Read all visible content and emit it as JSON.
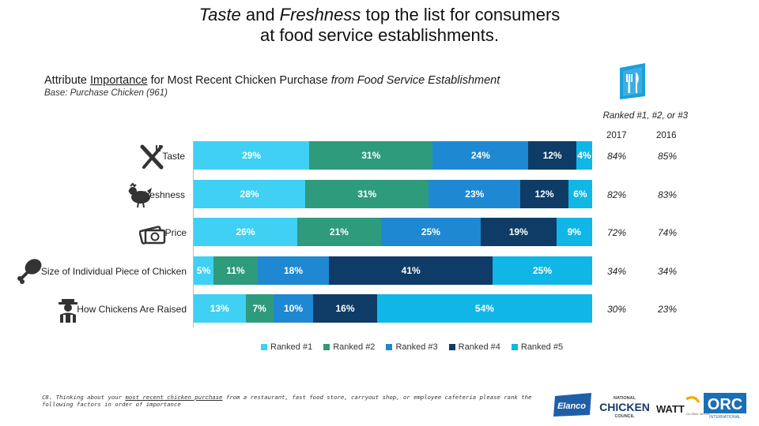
{
  "title": {
    "line1_part1": "Taste",
    "line1_part2": " and ",
    "line1_part3": "Freshness",
    "line1_part4": " top the list for consumers",
    "line2": "at food service establishments."
  },
  "subtitle": {
    "part1": "Attribute ",
    "part2": "Importance",
    "part3": " for Most Recent Chicken Purchase ",
    "part4": "from Food Service Establishment"
  },
  "base_text": "Base: Purchase Chicken (961)",
  "comparison": {
    "header": "Ranked #1, #2, or #3",
    "year_a": "2017",
    "year_b": "2016",
    "rows": [
      {
        "a": "84%",
        "b": "85%"
      },
      {
        "a": "82%",
        "b": "83%"
      },
      {
        "a": "72%",
        "b": "74%"
      },
      {
        "a": "34%",
        "b": "34%"
      },
      {
        "a": "30%",
        "b": "23%"
      }
    ]
  },
  "chart_data": {
    "type": "bar",
    "orientation": "horizontal",
    "stacked": true,
    "categories": [
      "Taste",
      "Freshness",
      "Price",
      "Size of Individual Piece of Chicken",
      "How Chickens Are Raised"
    ],
    "series": [
      {
        "name": "Ranked #1",
        "color": "#3FD0F4",
        "values": [
          29,
          28,
          26,
          5,
          13
        ],
        "labels": [
          "29%",
          "28%",
          "26%",
          "5%",
          "13%"
        ]
      },
      {
        "name": "Ranked #2",
        "color": "#2E9B7C",
        "values": [
          31,
          31,
          21,
          11,
          7
        ],
        "labels": [
          "31%",
          "31%",
          "21%",
          "11%",
          "7%"
        ]
      },
      {
        "name": "Ranked #3",
        "color": "#1E88D2",
        "values": [
          24,
          23,
          25,
          18,
          10
        ],
        "labels": [
          "24%",
          "23%",
          "25%",
          "18%",
          "10%"
        ]
      },
      {
        "name": "Ranked #4",
        "color": "#0E3C66",
        "values": [
          12,
          12,
          19,
          41,
          16
        ],
        "labels": [
          "12%",
          "12%",
          "19%",
          "41%",
          "16%"
        ]
      },
      {
        "name": "Ranked #5",
        "color": "#10B7E6",
        "values": [
          4,
          6,
          9,
          25,
          54
        ],
        "labels": [
          "4%",
          "6%",
          "9%",
          "25%",
          "54%"
        ]
      }
    ],
    "xlim": [
      0,
      100
    ],
    "legend_position": "bottom"
  },
  "footnote": {
    "part1": "C8. Thinking about your ",
    "part2": "most recent chicken purchase",
    "part3": " from a restaurant, fast food store, carryout shop, or employee cafeteria please rank the following factors in order of importance"
  },
  "logos": {
    "elanco": "Elanco",
    "ncc_top": "NATIONAL",
    "ncc_main": "CHICKEN",
    "ncc_bottom": "COUNCIL",
    "watt": "WATT",
    "watt_sub": "GLOBAL MEDIA",
    "orc": "ORC",
    "orc_sub": "INTERNATIONAL"
  },
  "colors": {
    "rank1": "#3FD0F4",
    "rank2": "#2E9B7C",
    "rank3": "#1E88D2",
    "rank4": "#0E3C66",
    "rank5": "#10B7E6",
    "icon": "#1aa0dc"
  }
}
